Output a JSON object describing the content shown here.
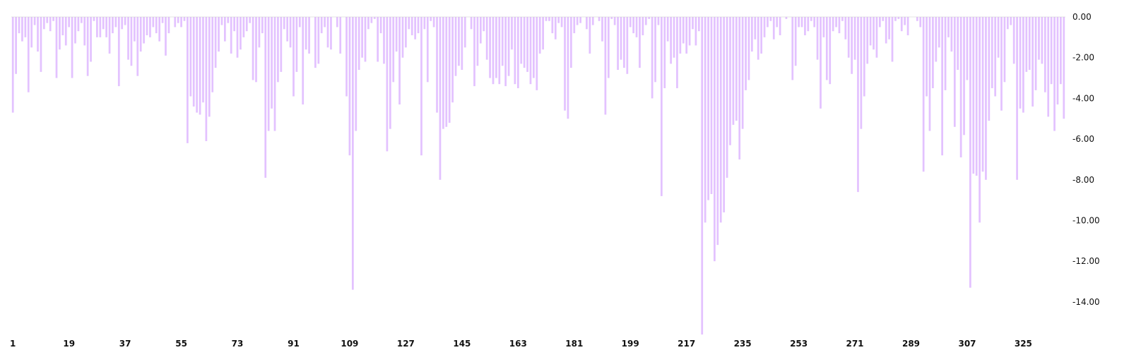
{
  "chart_data": {
    "type": "bar",
    "title": "",
    "xlabel": "",
    "ylabel": "",
    "bar_color": "#e3c2ff",
    "baseline_color": "#cccccc",
    "x_start": 1,
    "x_tick_labels": [
      "1",
      "19",
      "37",
      "55",
      "73",
      "91",
      "109",
      "127",
      "145",
      "163",
      "181",
      "199",
      "217",
      "235",
      "253",
      "271",
      "289",
      "307",
      "325"
    ],
    "y_tick_labels": [
      "0.00",
      "-2.00",
      "-4.00",
      "-6.00",
      "-8.00",
      "-10.00",
      "-12.00",
      "-14.00"
    ],
    "y_tick_values": [
      0,
      -2,
      -4,
      -6,
      -8,
      -10,
      -12,
      -14
    ],
    "ylim": [
      -15.6,
      0
    ],
    "grid": false,
    "legend": "none",
    "values": [
      -4.7,
      -2.8,
      -0.8,
      -1.2,
      -1.0,
      -3.7,
      -1.5,
      -0.4,
      -1.7,
      -2.7,
      -0.6,
      -0.3,
      -0.7,
      -0.2,
      -3.0,
      -1.6,
      -0.9,
      -1.4,
      -0.5,
      -3.0,
      -1.3,
      -0.7,
      -0.3,
      -1.4,
      -2.9,
      -2.2,
      -0.2,
      -1.0,
      -1.0,
      -0.6,
      -1.0,
      -1.8,
      -0.8,
      -0.5,
      -3.4,
      -0.6,
      -0.4,
      -2.1,
      -2.4,
      -1.2,
      -2.9,
      -1.7,
      -1.3,
      -0.9,
      -1.0,
      -0.5,
      -0.8,
      -1.2,
      -0.3,
      -1.9,
      -0.8,
      0.0,
      -0.5,
      -0.3,
      -0.5,
      -0.2,
      -6.2,
      -3.9,
      -4.4,
      -4.7,
      -4.8,
      -4.2,
      -6.1,
      -4.9,
      -3.7,
      -2.5,
      -1.7,
      -0.4,
      -1.2,
      -0.3,
      -1.8,
      -0.7,
      -2.0,
      -1.6,
      -1.0,
      -0.7,
      -0.3,
      -3.1,
      -3.2,
      -1.5,
      -0.8,
      -7.9,
      -5.6,
      -4.5,
      -5.6,
      -3.2,
      -2.7,
      -0.6,
      -1.2,
      -1.5,
      -3.9,
      -2.7,
      -0.5,
      -4.3,
      -1.6,
      -1.8,
      0.0,
      -2.5,
      -2.3,
      -0.8,
      -0.5,
      -1.5,
      -1.6,
      0.0,
      -0.5,
      -1.8,
      0.0,
      -3.9,
      -6.8,
      -13.4,
      -5.6,
      -2.6,
      -2.0,
      -2.2,
      -0.6,
      -0.3,
      -0.1,
      -2.2,
      -0.8,
      -2.3,
      -6.6,
      -5.5,
      -3.2,
      -1.7,
      -4.3,
      -2.0,
      -1.5,
      -0.6,
      -0.9,
      -1.1,
      -0.8,
      -6.8,
      -0.6,
      -3.2,
      -0.2,
      -0.5,
      -4.7,
      -8.0,
      -5.5,
      -5.4,
      -5.2,
      -4.2,
      -2.9,
      -2.4,
      -2.6,
      -1.5,
      0.0,
      -0.6,
      -3.4,
      -2.4,
      -1.3,
      -0.7,
      -2.1,
      -3.0,
      -3.3,
      -3.0,
      -3.3,
      -2.4,
      -3.4,
      -2.9,
      -1.6,
      -3.3,
      -3.5,
      -2.3,
      -2.5,
      -2.7,
      -3.3,
      -3.0,
      -3.6,
      -1.8,
      -1.6,
      -0.2,
      -0.2,
      -0.8,
      -1.1,
      -0.3,
      -0.5,
      -4.6,
      -5.0,
      -2.5,
      -0.8,
      -0.4,
      -0.3,
      0.0,
      -0.6,
      -1.8,
      -0.4,
      0.0,
      -0.2,
      -1.2,
      -4.8,
      -3.0,
      -0.1,
      -0.4,
      -2.6,
      -2.1,
      -2.5,
      -2.8,
      -0.5,
      -0.8,
      -1.0,
      -2.5,
      -0.9,
      -0.4,
      -0.1,
      -4.0,
      -3.2,
      -0.4,
      -8.8,
      -3.5,
      -1.2,
      -2.3,
      -2.0,
      -3.5,
      -1.8,
      -1.3,
      -1.8,
      -1.4,
      -0.6,
      -1.4,
      -0.7,
      -15.6,
      -10.1,
      -9.0,
      -8.7,
      -12.0,
      -11.2,
      -10.1,
      -9.6,
      -7.9,
      -6.3,
      -5.3,
      -5.1,
      -7.0,
      -5.5,
      -3.6,
      -3.1,
      -1.7,
      -1.1,
      -2.1,
      -1.8,
      -1.0,
      -0.5,
      -0.2,
      -1.1,
      -0.5,
      -0.9,
      0.0,
      -0.1,
      0.0,
      -3.1,
      -2.4,
      -0.5,
      -0.5,
      -0.9,
      -0.7,
      -0.2,
      -0.5,
      -2.1,
      -4.5,
      -1.0,
      -3.1,
      -3.3,
      -0.7,
      -0.5,
      -0.8,
      -0.2,
      -1.1,
      -2.0,
      -2.8,
      -2.1,
      -8.6,
      -5.5,
      -3.9,
      -2.3,
      -1.4,
      -1.6,
      -2.0,
      -0.5,
      -0.2,
      -1.3,
      -1.1,
      -2.2,
      -0.2,
      -0.1,
      -0.7,
      -0.4,
      -0.9,
      0.0,
      0.0,
      -0.2,
      -0.5,
      -7.6,
      -3.9,
      -5.6,
      -3.5,
      -2.2,
      -1.5,
      -6.8,
      -3.6,
      -1.0,
      -1.7,
      -5.4,
      -2.6,
      -6.9,
      -5.8,
      -3.1,
      -13.3,
      -7.7,
      -7.8,
      -10.1,
      -7.6,
      -8.0,
      -5.1,
      -3.5,
      -3.9,
      -2.0,
      -4.6,
      -3.2,
      -0.6,
      -0.4,
      -2.3,
      -8.0,
      -4.5,
      -4.7,
      -2.7,
      -2.6,
      -4.4,
      -3.6,
      -2.1,
      -2.3,
      -3.7,
      -4.9,
      -3.3,
      -5.6,
      -4.3,
      -3.3,
      -5.0
    ]
  }
}
